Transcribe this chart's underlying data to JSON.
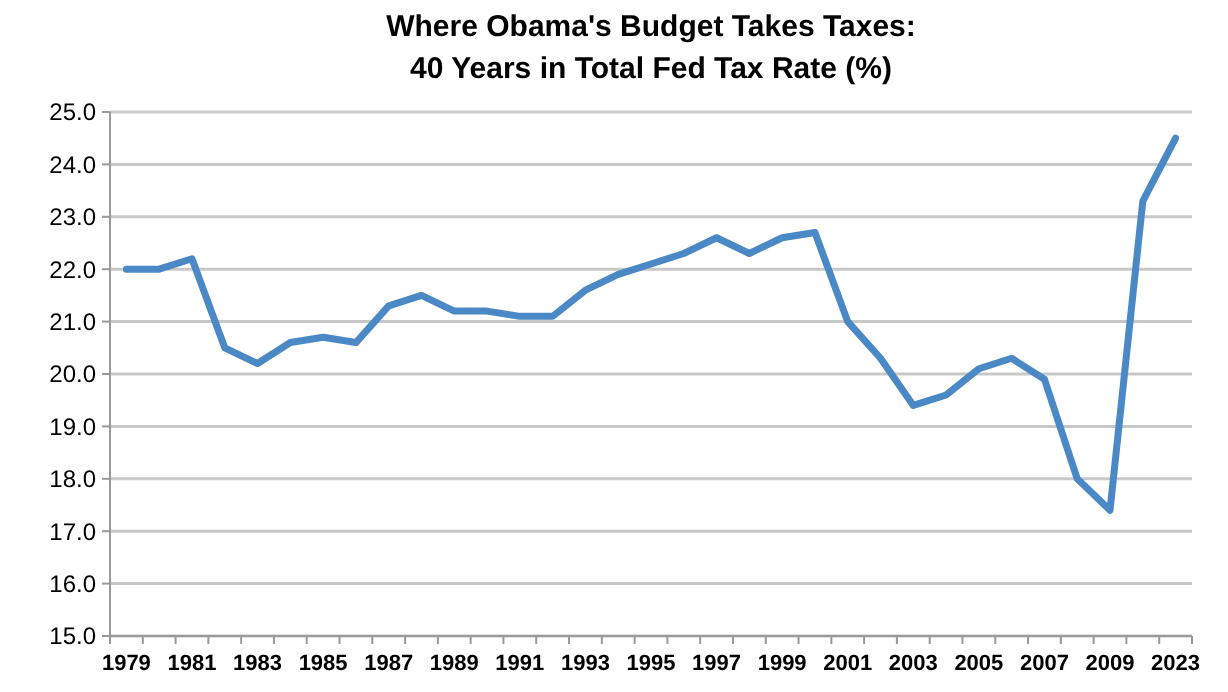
{
  "chart_data": {
    "type": "line",
    "title": "Where Obama's Budget Takes Taxes:\n40 Years in Total Fed Tax Rate (%)",
    "categories": [
      "1979",
      null,
      "1981",
      null,
      "1983",
      null,
      "1985",
      null,
      "1987",
      null,
      "1989",
      null,
      "1991",
      null,
      "1993",
      null,
      "1995",
      null,
      "1997",
      null,
      "1999",
      null,
      "2001",
      null,
      "2003",
      null,
      "2005",
      null,
      "2007",
      null,
      "2009",
      null,
      "2023"
    ],
    "series": [
      {
        "color": "#4a89c5",
        "values": [
          22.0,
          22.0,
          22.2,
          20.5,
          20.2,
          20.6,
          20.7,
          20.6,
          21.3,
          21.5,
          21.2,
          21.2,
          21.1,
          21.1,
          21.6,
          21.9,
          22.1,
          22.3,
          22.6,
          22.3,
          22.6,
          22.7,
          21.0,
          20.3,
          19.4,
          19.6,
          20.1,
          20.3,
          19.9,
          18.0,
          17.4,
          23.3,
          24.5
        ]
      }
    ],
    "ylim": [
      15,
      25
    ],
    "yticks": [
      {
        "value": 15,
        "label": "15.0"
      },
      {
        "value": 16,
        "label": "16.0"
      },
      {
        "value": 17,
        "label": "17.0"
      },
      {
        "value": 18,
        "label": "18.0"
      },
      {
        "value": 19,
        "label": "19.0"
      },
      {
        "value": 20,
        "label": "20.0"
      },
      {
        "value": 21,
        "label": "21.0"
      },
      {
        "value": 22,
        "label": "22.0"
      },
      {
        "value": 23,
        "label": "23.0"
      },
      {
        "value": 24,
        "label": "24.0"
      },
      {
        "value": 25,
        "label": "25.0"
      }
    ],
    "grid": "y",
    "marker": "none",
    "line_style": "solid"
  }
}
